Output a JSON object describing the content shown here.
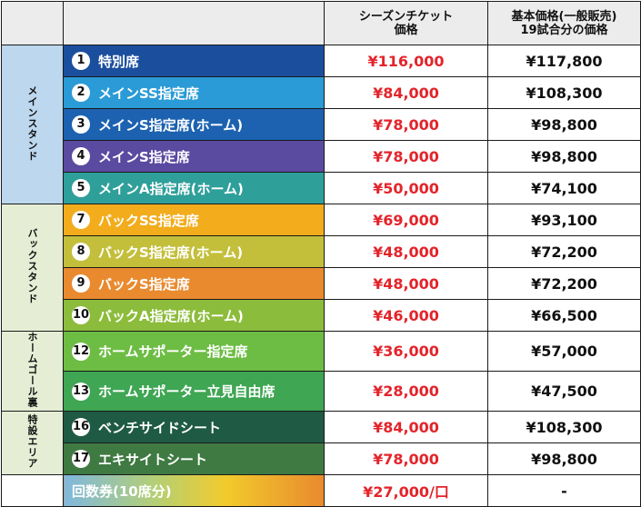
{
  "header": {
    "season_line1": "シーズンチケット",
    "season_line2": "価格",
    "base_line1": "基本価格(一般販売)",
    "base_line2": "19試合分の価格"
  },
  "sections": {
    "main": "メインスタンド",
    "back": "バックスタンド",
    "goal": "ホームゴール裏",
    "special": "特設エリア"
  },
  "rows": [
    {
      "num": "1",
      "label": "特別席",
      "season": "¥116,000",
      "base": "¥117,800",
      "color": "#1b4f9e"
    },
    {
      "num": "2",
      "label": "メインSS指定席",
      "season": "¥84,000",
      "base": "¥108,300",
      "color": "#2a9bd6"
    },
    {
      "num": "3",
      "label": "メインS指定席(ホーム)",
      "season": "¥78,000",
      "base": "¥98,800",
      "color": "#1c62b0"
    },
    {
      "num": "4",
      "label": "メインS指定席",
      "season": "¥78,000",
      "base": "¥98,800",
      "color": "#5a4aa0"
    },
    {
      "num": "5",
      "label": "メインA指定席(ホーム)",
      "season": "¥50,000",
      "base": "¥74,100",
      "color": "#2f9f9a"
    },
    {
      "num": "7",
      "label": "バックSS指定席",
      "season": "¥69,000",
      "base": "¥93,100",
      "color": "#f2ac1c"
    },
    {
      "num": "8",
      "label": "バックS指定席(ホーム)",
      "season": "¥48,000",
      "base": "¥72,200",
      "color": "#c3bf3b"
    },
    {
      "num": "9",
      "label": "バックS指定席",
      "season": "¥48,000",
      "base": "¥72,200",
      "color": "#e98a2f"
    },
    {
      "num": "10",
      "label": "バックA指定席(ホーム)",
      "season": "¥46,000",
      "base": "¥66,500",
      "color": "#8cbc3b"
    },
    {
      "num": "12",
      "label": "ホームサポーター指定席",
      "season": "¥36,000",
      "base": "¥57,000",
      "color": "#6dbd44"
    },
    {
      "num": "13",
      "label": "ホームサポーター立見自由席",
      "season": "¥28,000",
      "base": "¥47,500",
      "color": "#3fa653"
    },
    {
      "num": "16",
      "label": "ベンチサイドシート",
      "season": "¥84,000",
      "base": "¥108,300",
      "color": "#1f5a45"
    },
    {
      "num": "17",
      "label": "エキサイトシート",
      "season": "¥78,000",
      "base": "¥98,800",
      "color": "#3f7a42"
    }
  ],
  "coupon": {
    "label": "回数券(10席分)",
    "season": "¥27,000/口",
    "base": "-"
  }
}
